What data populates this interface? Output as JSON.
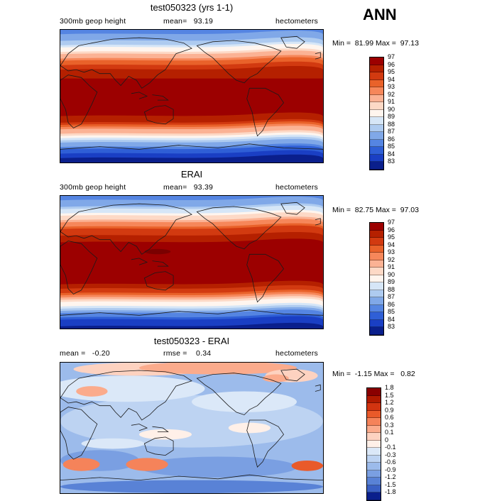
{
  "season": "ANN",
  "panels": [
    {
      "title": "test050323 (yrs 1-1)",
      "left_label": "300mb geop height",
      "center_label": "mean=   93.19",
      "units": "hectometers",
      "minmax": "Min =  81.99 Max =  97.13",
      "map": "model",
      "colorbar": [
        "97",
        "96",
        "95",
        "94",
        "93",
        "92",
        "91",
        "90",
        "89",
        "88",
        "87",
        "86",
        "85",
        "84",
        "83"
      ]
    },
    {
      "title": "ERAI",
      "left_label": "300mb geop height",
      "center_label": "mean=   93.39",
      "units": "hectometers",
      "minmax": "Min =  82.75 Max =  97.03",
      "map": "obs",
      "colorbar": [
        "97",
        "96",
        "95",
        "94",
        "93",
        "92",
        "91",
        "90",
        "89",
        "88",
        "87",
        "86",
        "85",
        "84",
        "83"
      ]
    },
    {
      "title": "test050323 - ERAI",
      "left_label": "mean =   -0.20",
      "center_label": "rmse =    0.34",
      "units": "hectometers",
      "minmax": "Min =  -1.15 Max =   0.82",
      "map": "diff",
      "colorbar": [
        "1.8",
        "1.5",
        "1.2",
        "0.9",
        "0.6",
        "0.3",
        "0.1",
        "0",
        "-0.1",
        "-0.3",
        "-0.6",
        "-0.9",
        "-1.2",
        "-1.5",
        "-1.8"
      ]
    }
  ],
  "colors": {
    "field_scale": [
      "#9c0000",
      "#b52000",
      "#d23a10",
      "#e9622a",
      "#f6875a",
      "#fbb294",
      "#fdd9c6",
      "#fff5ee",
      "#d6e6f7",
      "#aecbf0",
      "#80a8e8",
      "#5585e2",
      "#2f5fd6",
      "#1a3fc4",
      "#0a1f8c"
    ],
    "diff_scale": [
      "#8a0000",
      "#b01a00",
      "#d23410",
      "#e95a2a",
      "#f5835a",
      "#fbab8c",
      "#fdd2c0",
      "#fff0e8",
      "#dbe8f8",
      "#bdd3f2",
      "#9cbbeb",
      "#7a9fe2",
      "#5982d6",
      "#3a60c4",
      "#0a1f8c"
    ]
  },
  "chart_data": [
    {
      "type": "heatmap",
      "title": "test050323 (yrs 1-1)",
      "variable": "300mb geop height",
      "units": "hectometers",
      "mean": 93.19,
      "min": 81.99,
      "max": 97.13,
      "levels": [
        83,
        84,
        85,
        86,
        87,
        88,
        89,
        90,
        91,
        92,
        93,
        94,
        95,
        96,
        97
      ]
    },
    {
      "type": "heatmap",
      "title": "ERAI",
      "variable": "300mb geop height",
      "units": "hectometers",
      "mean": 93.39,
      "min": 82.75,
      "max": 97.03,
      "levels": [
        83,
        84,
        85,
        86,
        87,
        88,
        89,
        90,
        91,
        92,
        93,
        94,
        95,
        96,
        97
      ]
    },
    {
      "type": "heatmap",
      "title": "test050323 - ERAI",
      "units": "hectometers",
      "mean": -0.2,
      "rmse": 0.34,
      "min": -1.15,
      "max": 0.82,
      "levels": [
        -1.8,
        -1.5,
        -1.2,
        -0.9,
        -0.6,
        -0.3,
        -0.1,
        0,
        0.1,
        0.3,
        0.6,
        0.9,
        1.2,
        1.5,
        1.8
      ]
    }
  ]
}
